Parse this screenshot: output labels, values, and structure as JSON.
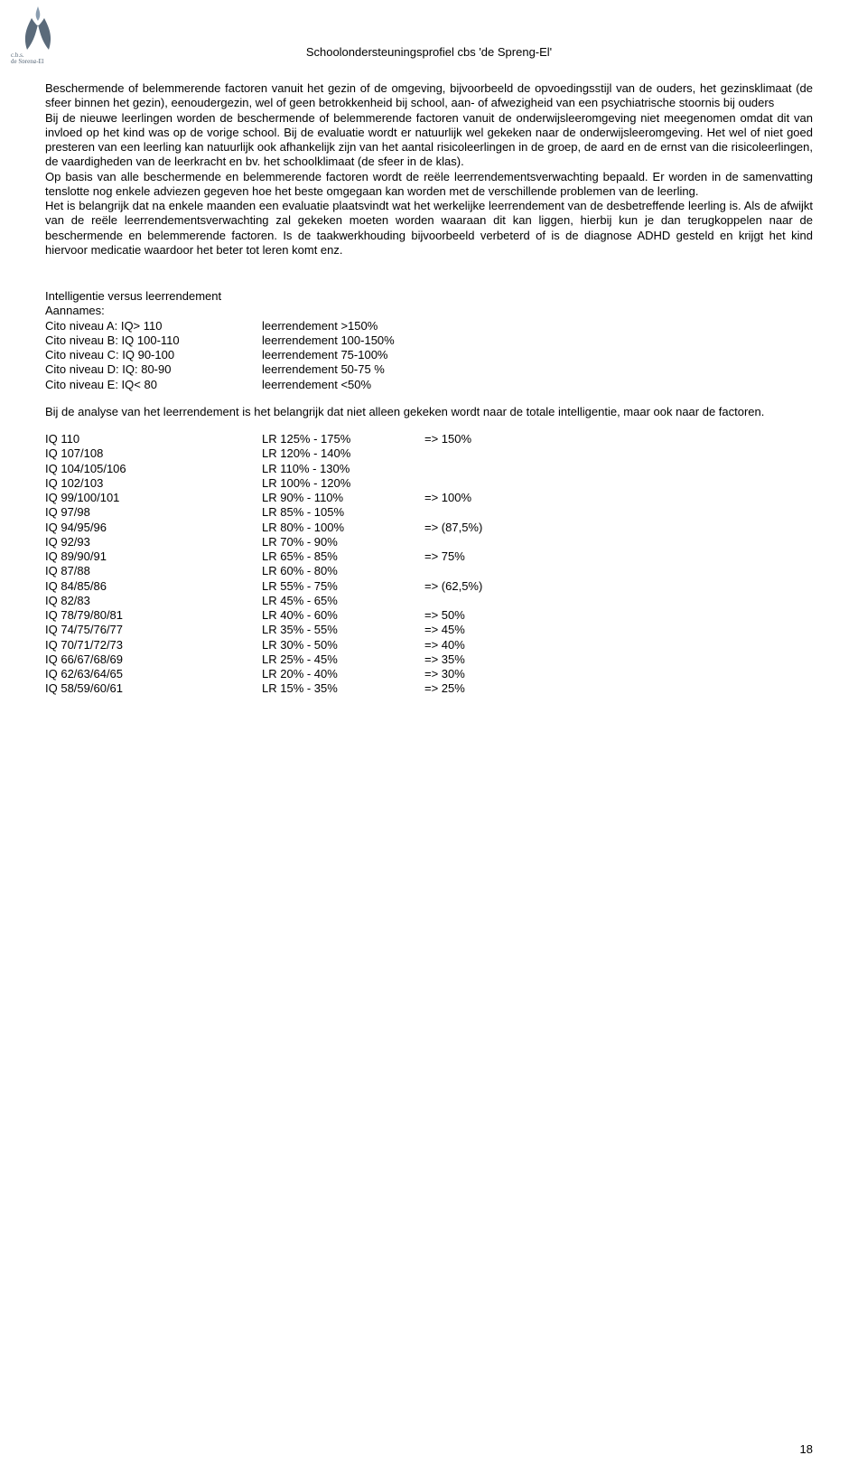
{
  "header_title": "Schoolondersteuningsprofiel cbs 'de Spreng-El'",
  "logo_text": "c.b.s.\nde Spreng-El",
  "logo_color_main": "#5a6a7a",
  "logo_color_accent": "#8a9db0",
  "para1": "Beschermende of belemmerende factoren vanuit het gezin of de omgeving, bijvoorbeeld de opvoedingsstijl van de ouders, het gezinsklimaat (de sfeer binnen het gezin), eenoudergezin, wel of geen betrokkenheid bij school, aan- of afwezigheid van een psychiatrische stoornis bij ouders",
  "para2": "Bij de nieuwe leerlingen worden de beschermende of belemmerende factoren vanuit de onderwijsleeromgeving niet meegenomen omdat dit van invloed op het kind was op de vorige school. Bij de evaluatie wordt er natuurlijk wel gekeken naar de onderwijsleeromgeving. Het wel of niet goed presteren van een leerling kan natuurlijk ook afhankelijk zijn van het aantal risicoleerlingen in de groep, de aard en de ernst van die risicoleerlingen, de vaardigheden van de leerkracht en bv. het schoolklimaat (de sfeer in de klas).",
  "para3": "Op basis van alle beschermende en belemmerende factoren wordt de reële leerrendementsverwachting bepaald. Er worden in de samenvatting tenslotte nog enkele adviezen gegeven hoe het beste omgegaan kan worden met de verschillende problemen van de leerling.",
  "para4": "Het is belangrijk dat na enkele maanden een evaluatie plaatsvindt wat het werkelijke leerrendement van de desbetreffende leerling is. Als de afwijkt van de reële leerrendementsverwachting zal gekeken moeten worden waaraan dit kan liggen, hierbij kun je dan terugkoppelen naar de beschermende en belemmerende factoren. Is de taakwerkhouding bijvoorbeeld verbeterd of is de diagnose ADHD gesteld en krijgt het kind hiervoor medicatie waardoor het beter tot leren komt enz.",
  "section1_title": "Intelligentie versus leerrendement",
  "section1_sub": "Aannames:",
  "table1": [
    [
      "Cito niveau A: IQ> 110",
      "leerrendement >150%"
    ],
    [
      "Cito niveau B: IQ 100-110",
      "leerrendement 100-150%"
    ],
    [
      "Cito niveau C: IQ 90-100",
      "leerrendement 75-100%"
    ],
    [
      "Cito niveau D: IQ: 80-90",
      "leerrendement 50-75 %"
    ],
    [
      "Cito niveau E: IQ< 80",
      "leerrendement <50%"
    ]
  ],
  "para5": "Bij de analyse van het leerrendement is het belangrijk dat niet alleen gekeken wordt naar de totale intelligentie, maar ook naar de factoren.",
  "table2": [
    [
      "IQ 110",
      "LR 125% - 175%",
      "=> 150%"
    ],
    [
      "IQ 107/108",
      "LR 120% - 140%",
      ""
    ],
    [
      "IQ 104/105/106",
      "LR 110% - 130%",
      ""
    ],
    [
      "IQ 102/103",
      "LR 100% - 120%",
      ""
    ],
    [
      "IQ 99/100/101",
      "LR 90% - 110%",
      "=> 100%"
    ],
    [
      "IQ 97/98",
      "LR 85% - 105%",
      ""
    ],
    [
      "IQ 94/95/96",
      "LR 80% - 100%",
      "=> (87,5%)"
    ],
    [
      "IQ 92/93",
      "LR 70% - 90%",
      ""
    ],
    [
      "IQ 89/90/91",
      "LR 65% - 85%",
      "=> 75%"
    ],
    [
      "IQ 87/88",
      "LR 60% - 80%",
      ""
    ],
    [
      "IQ 84/85/86",
      "LR 55% - 75%",
      "=> (62,5%)"
    ],
    [
      "IQ 82/83",
      "LR 45% - 65%",
      ""
    ],
    [
      "IQ 78/79/80/81",
      "LR 40% - 60%",
      "=> 50%"
    ],
    [
      "IQ 74/75/76/77",
      "LR 35% - 55%",
      "=> 45%"
    ],
    [
      "IQ 70/71/72/73",
      "LR 30% - 50%",
      "=> 40%"
    ],
    [
      "IQ 66/67/68/69",
      "LR 25% - 45%",
      "=> 35%"
    ],
    [
      "IQ 62/63/64/65",
      "LR 20% - 40%",
      "=> 30%"
    ],
    [
      "IQ 58/59/60/61",
      "LR 15% - 35%",
      "=> 25%"
    ]
  ],
  "page_number": "18"
}
